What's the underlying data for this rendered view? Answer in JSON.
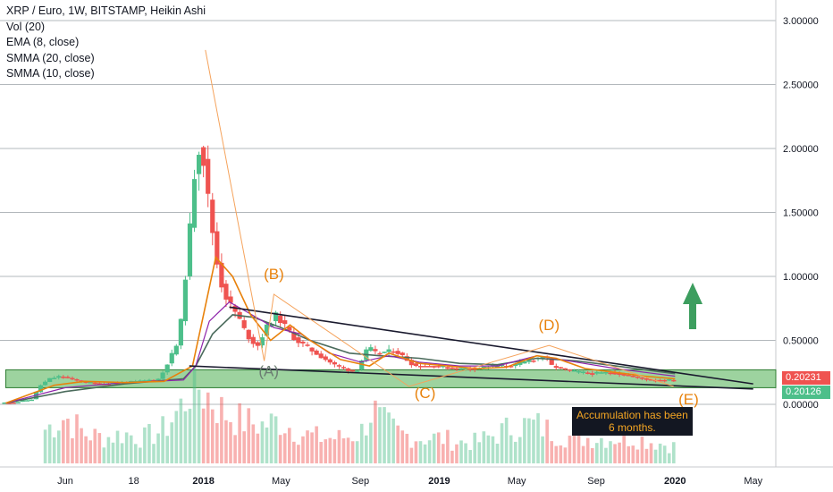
{
  "chart_header": {
    "title": "XRP / Euro, 1W, BITSTAMP, Heikin Ashi",
    "indicators": [
      "Vol (20)",
      "EMA (8, close)",
      "SMMA (20, close)",
      "SMMA (10, close)"
    ]
  },
  "price_tags": {
    "upper": "0.20231",
    "lower": "0.20126"
  },
  "annotations": {
    "wave_a": "(A)",
    "wave_b": "(B)",
    "wave_c": "(C)",
    "wave_d": "(D)",
    "wave_e": "(E)",
    "note": [
      "Accumulation has been",
      "6 months."
    ]
  },
  "colors": {
    "bull": "#4dbf8a",
    "bear": "#ef5350",
    "ema": "#e8820c",
    "smma20": "#4b6b5c",
    "smma10": "#8e24aa",
    "zone": "#4caf50",
    "wave_label": "#e8820c",
    "arrow": "#3d9e5f",
    "trendline": "#1a1a2e",
    "axis_text": "#131722"
  },
  "chart_data": {
    "type": "candlestick",
    "title": "XRP / Euro, 1W, BITSTAMP, Heikin Ashi",
    "yaxis_ticks": [
      "3.00000",
      "2.50000",
      "2.00000",
      "1.50000",
      "1.00000",
      "0.50000",
      "0.00000"
    ],
    "ylim": [
      -0.45,
      3.1
    ],
    "xaxis_ticks": [
      "Jun",
      "18",
      "2018",
      "May",
      "Sep",
      "2019",
      "May",
      "Sep",
      "2020",
      "May"
    ],
    "xaxis_tick_dates": [
      "2017-06-01",
      "2017-09-15",
      "2018-01-01",
      "2018-05-01",
      "2018-09-01",
      "2019-01-01",
      "2019-05-01",
      "2019-09-01",
      "2020-01-01",
      "2020-05-01"
    ],
    "xlim_dates": [
      "2017-02-20",
      "2020-06-05"
    ],
    "last_price": 0.20231,
    "current_price": 0.20126,
    "price_series": {
      "dates": [
        "2017-02-27",
        "2017-03-27",
        "2017-04-17",
        "2017-05-01",
        "2017-05-15",
        "2017-06-01",
        "2017-07-01",
        "2017-08-01",
        "2017-09-01",
        "2017-10-01",
        "2017-11-01",
        "2017-12-01",
        "2017-12-15",
        "2017-12-25",
        "2018-01-04",
        "2018-01-15",
        "2018-02-01",
        "2018-02-15",
        "2018-03-01",
        "2018-03-15",
        "2018-04-01",
        "2018-04-15",
        "2018-05-01",
        "2018-05-15",
        "2018-06-01",
        "2018-07-01",
        "2018-08-01",
        "2018-09-01",
        "2018-09-20",
        "2018-10-01",
        "2018-11-01",
        "2018-12-01",
        "2019-01-01",
        "2019-02-01",
        "2019-03-01",
        "2019-04-01",
        "2019-05-01",
        "2019-06-01",
        "2019-06-20",
        "2019-07-01",
        "2019-08-01",
        "2019-09-01",
        "2019-10-01",
        "2019-11-01",
        "2019-12-01",
        "2020-01-01"
      ],
      "values": [
        0.01,
        0.02,
        0.04,
        0.15,
        0.2,
        0.22,
        0.18,
        0.16,
        0.17,
        0.18,
        0.2,
        0.5,
        1.2,
        1.8,
        2.1,
        1.6,
        1.0,
        0.8,
        0.7,
        0.55,
        0.45,
        0.6,
        0.7,
        0.6,
        0.5,
        0.4,
        0.3,
        0.25,
        0.45,
        0.4,
        0.42,
        0.3,
        0.3,
        0.28,
        0.28,
        0.3,
        0.3,
        0.35,
        0.38,
        0.3,
        0.26,
        0.24,
        0.25,
        0.22,
        0.19,
        0.19
      ]
    },
    "ema8": {
      "dates": [
        "2017-03-01",
        "2017-05-15",
        "2017-07-01",
        "2017-09-01",
        "2017-11-01",
        "2017-12-15",
        "2018-01-01",
        "2018-01-20",
        "2018-02-15",
        "2018-03-15",
        "2018-04-15",
        "2018-05-15",
        "2018-06-15",
        "2018-08-01",
        "2018-09-15",
        "2018-10-15",
        "2018-12-01",
        "2019-01-15",
        "2019-03-01",
        "2019-04-15",
        "2019-06-01",
        "2019-07-01",
        "2019-08-15",
        "2019-10-01",
        "2019-11-15",
        "2020-01-01"
      ],
      "values": [
        0.01,
        0.15,
        0.18,
        0.17,
        0.18,
        0.3,
        0.7,
        1.15,
        1.0,
        0.7,
        0.5,
        0.62,
        0.5,
        0.35,
        0.3,
        0.4,
        0.32,
        0.3,
        0.28,
        0.29,
        0.38,
        0.36,
        0.28,
        0.25,
        0.22,
        0.2
      ]
    },
    "smma20": {
      "dates": [
        "2017-03-01",
        "2017-06-01",
        "2017-09-01",
        "2017-12-01",
        "2017-12-20",
        "2018-01-15",
        "2018-02-15",
        "2018-03-20",
        "2018-05-01",
        "2018-06-15",
        "2018-08-15",
        "2018-10-01",
        "2018-12-01",
        "2019-02-01",
        "2019-04-01",
        "2019-06-01",
        "2019-08-01",
        "2019-10-01",
        "2019-12-01",
        "2020-01-01"
      ],
      "values": [
        0.01,
        0.1,
        0.16,
        0.2,
        0.3,
        0.55,
        0.7,
        0.68,
        0.6,
        0.5,
        0.4,
        0.38,
        0.36,
        0.32,
        0.31,
        0.36,
        0.34,
        0.3,
        0.26,
        0.24
      ]
    },
    "smma10": {
      "dates": [
        "2017-03-01",
        "2017-06-01",
        "2017-09-01",
        "2017-12-01",
        "2017-12-20",
        "2018-01-10",
        "2018-02-10",
        "2018-03-10",
        "2018-04-20",
        "2018-06-01",
        "2018-07-15",
        "2018-09-01",
        "2018-10-15",
        "2018-12-01",
        "2019-02-01",
        "2019-04-01",
        "2019-06-01",
        "2019-08-01",
        "2019-10-01",
        "2019-12-01",
        "2020-01-01"
      ],
      "values": [
        0.01,
        0.13,
        0.17,
        0.19,
        0.3,
        0.65,
        0.8,
        0.72,
        0.6,
        0.55,
        0.4,
        0.33,
        0.38,
        0.33,
        0.3,
        0.3,
        0.38,
        0.33,
        0.28,
        0.24,
        0.22
      ]
    },
    "volume": {
      "dates": [
        "2017-05-01",
        "2017-06-01",
        "2017-07-01",
        "2017-08-01",
        "2017-09-01",
        "2017-10-01",
        "2017-11-01",
        "2017-12-01",
        "2017-12-15",
        "2018-01-01",
        "2018-01-15",
        "2018-02-01",
        "2018-03-01",
        "2018-04-01",
        "2018-05-01",
        "2018-06-01",
        "2018-07-01",
        "2018-08-01",
        "2018-09-01",
        "2018-09-20",
        "2018-10-01",
        "2018-11-01",
        "2018-12-01",
        "2019-01-01",
        "2019-02-01",
        "2019-03-01",
        "2019-04-01",
        "2019-05-01",
        "2019-06-01",
        "2019-07-01",
        "2019-08-01",
        "2019-09-01",
        "2019-10-01",
        "2019-11-01",
        "2019-12-01",
        "2020-01-01"
      ],
      "values": [
        0.4,
        0.55,
        0.35,
        0.3,
        0.35,
        0.3,
        0.4,
        0.7,
        1.0,
        0.85,
        0.75,
        0.6,
        0.5,
        0.45,
        0.5,
        0.35,
        0.3,
        0.3,
        0.35,
        0.65,
        0.5,
        0.35,
        0.3,
        0.3,
        0.25,
        0.25,
        0.35,
        0.45,
        0.45,
        0.35,
        0.3,
        0.3,
        0.3,
        0.3,
        0.25,
        0.2
      ]
    },
    "accumulation_zone": {
      "low": 0.13,
      "high": 0.27,
      "from": "2017-03-01",
      "to": "2020-01-20"
    },
    "trendlines": [
      {
        "name": "upper",
        "from": [
          "2018-02-10",
          0.76
        ],
        "to": [
          "2020-05-01",
          0.16
        ]
      },
      {
        "name": "lower",
        "from": [
          "2017-12-10",
          0.3
        ],
        "to": [
          "2020-05-01",
          0.12
        ]
      }
    ],
    "wave_path": {
      "dates": [
        "2018-01-04",
        "2018-04-05",
        "2018-04-20",
        "2018-11-15",
        "2019-06-20",
        "2019-12-30"
      ],
      "values": [
        2.77,
        0.34,
        0.86,
        0.14,
        0.46,
        0.14
      ]
    },
    "wave_labels": [
      {
        "text": "(A)",
        "date": "2018-04-12",
        "value": 0.22
      },
      {
        "text": "(B)",
        "date": "2018-04-20",
        "value": 0.98
      },
      {
        "text": "(C)",
        "date": "2018-12-10",
        "value": 0.05
      },
      {
        "text": "(D)",
        "date": "2019-06-20",
        "value": 0.58
      },
      {
        "text": "(E)",
        "date": "2020-01-22",
        "value": 0.0
      }
    ]
  }
}
